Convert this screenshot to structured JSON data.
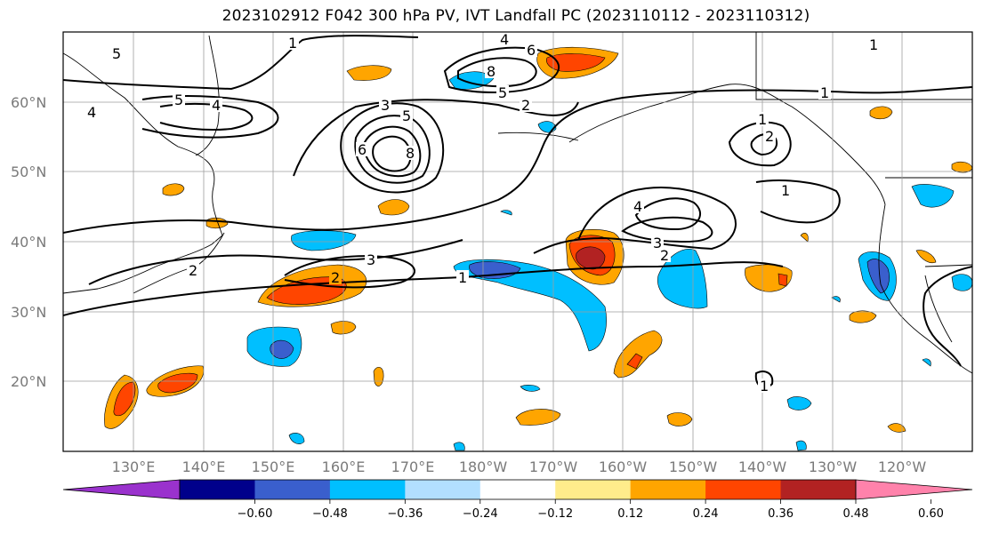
{
  "title": "2023102912 F042 300 hPa PV, IVT Landfall PC (2023110112 - 2023110312)",
  "map": {
    "lat_labels": [
      "60°N",
      "50°N",
      "40°N",
      "30°N",
      "20°N"
    ],
    "lon_labels": [
      "130°E",
      "140°E",
      "150°E",
      "160°E",
      "170°E",
      "180°W",
      "170°W",
      "160°W",
      "150°W",
      "140°W",
      "130°W",
      "120°W"
    ],
    "pv_contour_labels": [
      "1",
      "2",
      "3",
      "4",
      "5",
      "6",
      "8"
    ]
  },
  "colorbar": {
    "ticks": [
      "−0.60",
      "−0.48",
      "−0.36",
      "−0.24",
      "−0.12",
      "0.12",
      "0.24",
      "0.36",
      "0.48",
      "0.60"
    ],
    "colors": [
      "#9a32cd",
      "#00008b",
      "#3a5fcd",
      "#00bfff",
      "#b2dfff",
      "#ffffff",
      "#ffec8b",
      "#ffa500",
      "#ff4500",
      "#b22222",
      "#ff82ab"
    ]
  }
}
